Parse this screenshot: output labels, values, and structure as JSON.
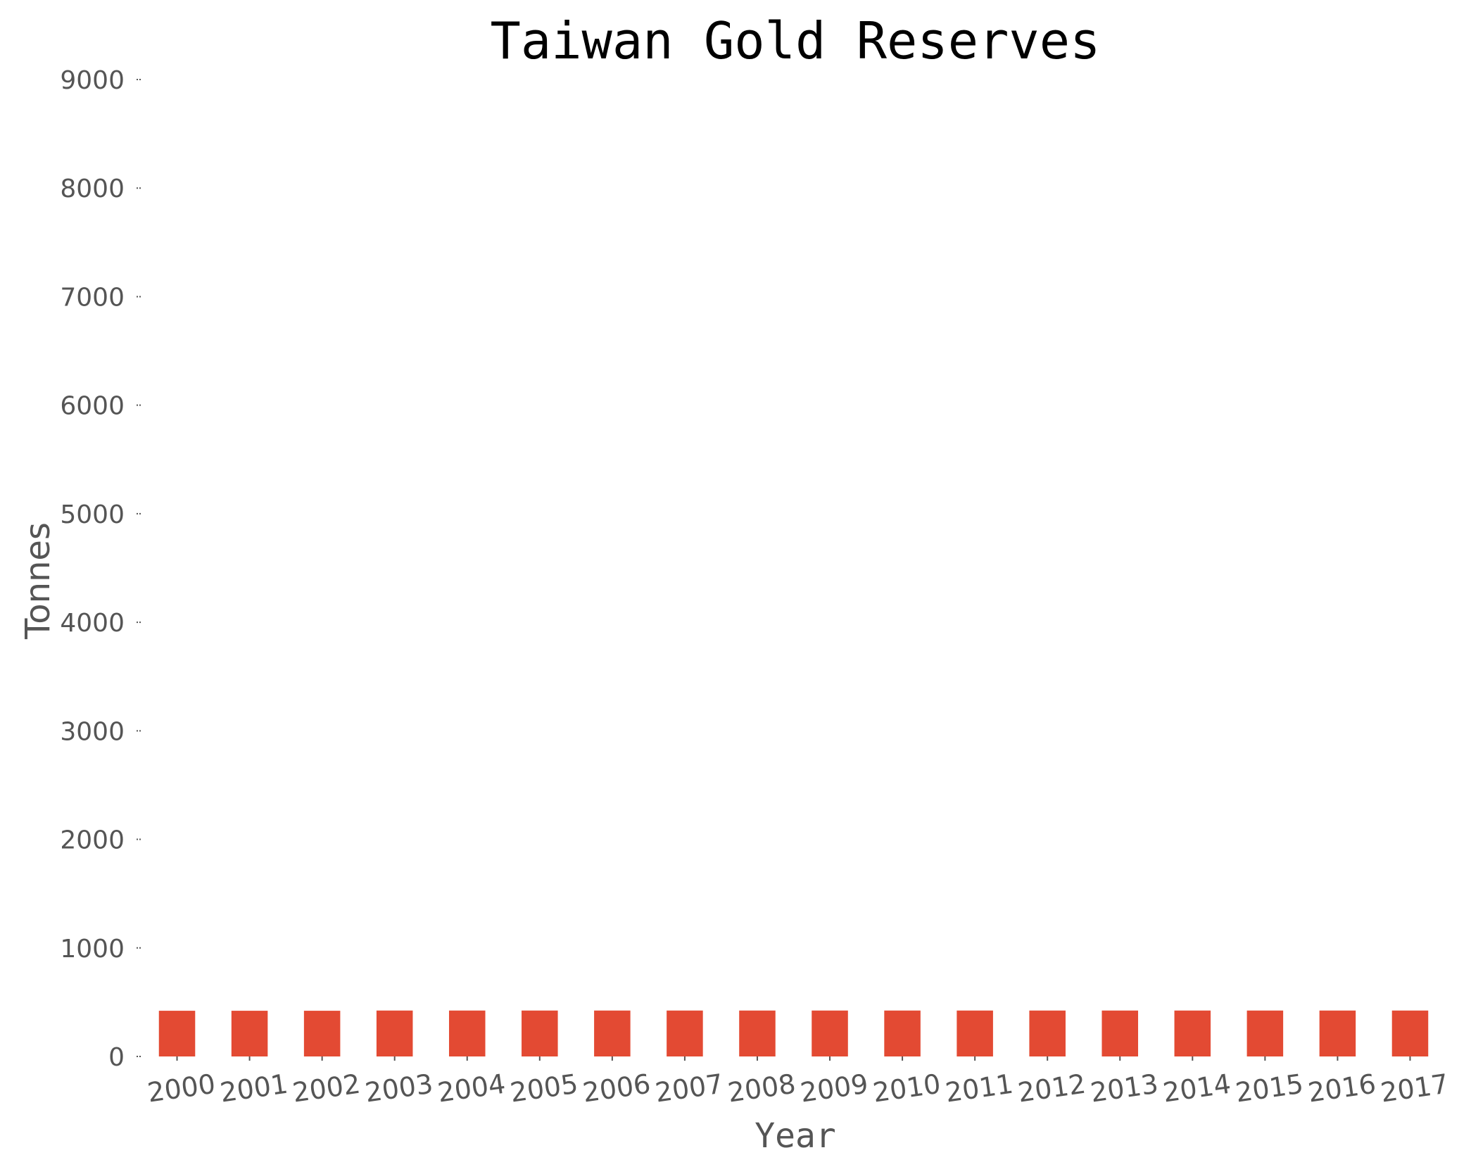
{
  "chart_data": {
    "type": "bar",
    "title": "Taiwan Gold Reserves",
    "xlabel": "Year",
    "ylabel": "Tonnes",
    "categories": [
      "2000",
      "2001",
      "2002",
      "2003",
      "2004",
      "2005",
      "2006",
      "2007",
      "2008",
      "2009",
      "2010",
      "2011",
      "2012",
      "2013",
      "2014",
      "2015",
      "2016",
      "2017"
    ],
    "values": [
      421,
      421,
      421,
      423,
      423,
      423,
      423,
      423,
      423,
      423,
      423,
      423,
      423,
      423,
      423,
      423,
      423,
      423
    ],
    "ylim": [
      0,
      9000
    ],
    "yticks": [
      0,
      1000,
      2000,
      3000,
      4000,
      5000,
      6000,
      7000,
      8000,
      9000
    ],
    "grid": false,
    "legend": "none",
    "bar_color": "#e34a33",
    "text_color": "#555555",
    "title_color": "#000000"
  }
}
